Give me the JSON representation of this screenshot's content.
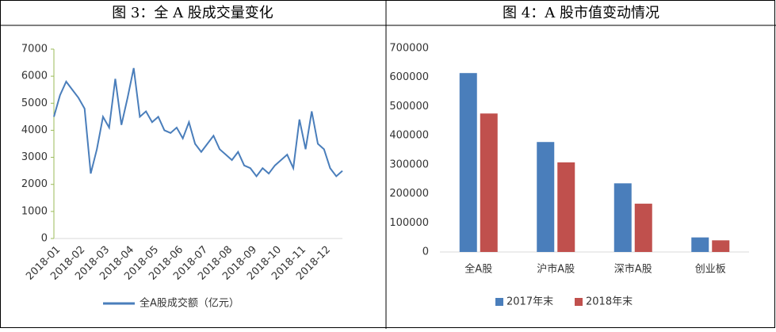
{
  "chart_data": [
    {
      "type": "line",
      "title": "图 3：全 A 股成交量变化",
      "categories": [
        "2018-01",
        null,
        null,
        null,
        "2018-02",
        null,
        null,
        null,
        "2018-03",
        null,
        null,
        null,
        "2018-04",
        null,
        null,
        null,
        "2018-05",
        null,
        null,
        null,
        "2018-06",
        null,
        null,
        null,
        "2018-07",
        null,
        null,
        null,
        "2018-08",
        null,
        null,
        null,
        "2018-09",
        null,
        null,
        null,
        "2018-10",
        null,
        null,
        null,
        "2018-11",
        null,
        null,
        null,
        "2018-12",
        null,
        null,
        null
      ],
      "series": [
        {
          "name": "全A股成交额（亿元）",
          "color": "#4a7ebb",
          "values": [
            4500,
            5300,
            5800,
            5500,
            5200,
            4800,
            2400,
            3300,
            4500,
            4100,
            5900,
            4200,
            5200,
            6300,
            4500,
            4700,
            4300,
            4500,
            4000,
            3900,
            4100,
            3700,
            4300,
            3500,
            3200,
            3500,
            3800,
            3300,
            3100,
            2900,
            3200,
            2700,
            2600,
            2300,
            2600,
            2400,
            2700,
            2900,
            3100,
            2600,
            4400,
            3300,
            4700,
            3500,
            3300,
            2600,
            2300,
            2500
          ]
        }
      ],
      "ylim": [
        0,
        7000
      ],
      "yticks": [
        0,
        1000,
        2000,
        3000,
        4000,
        5000,
        6000,
        7000
      ]
    },
    {
      "type": "bar",
      "title": "图 4：A 股市值变动情况",
      "categories": [
        "全A股",
        "沪市A股",
        "深市A股",
        "创业板"
      ],
      "series": [
        {
          "name": "2017年末",
          "color": "#4a7ebb",
          "values": [
            615000,
            378000,
            236000,
            50000
          ]
        },
        {
          "name": "2018年末",
          "color": "#c0504d",
          "values": [
            476000,
            308000,
            166000,
            40000
          ]
        }
      ],
      "ylim": [
        0,
        700000
      ],
      "yticks": [
        0,
        100000,
        200000,
        300000,
        400000,
        500000,
        600000,
        700000
      ]
    }
  ]
}
